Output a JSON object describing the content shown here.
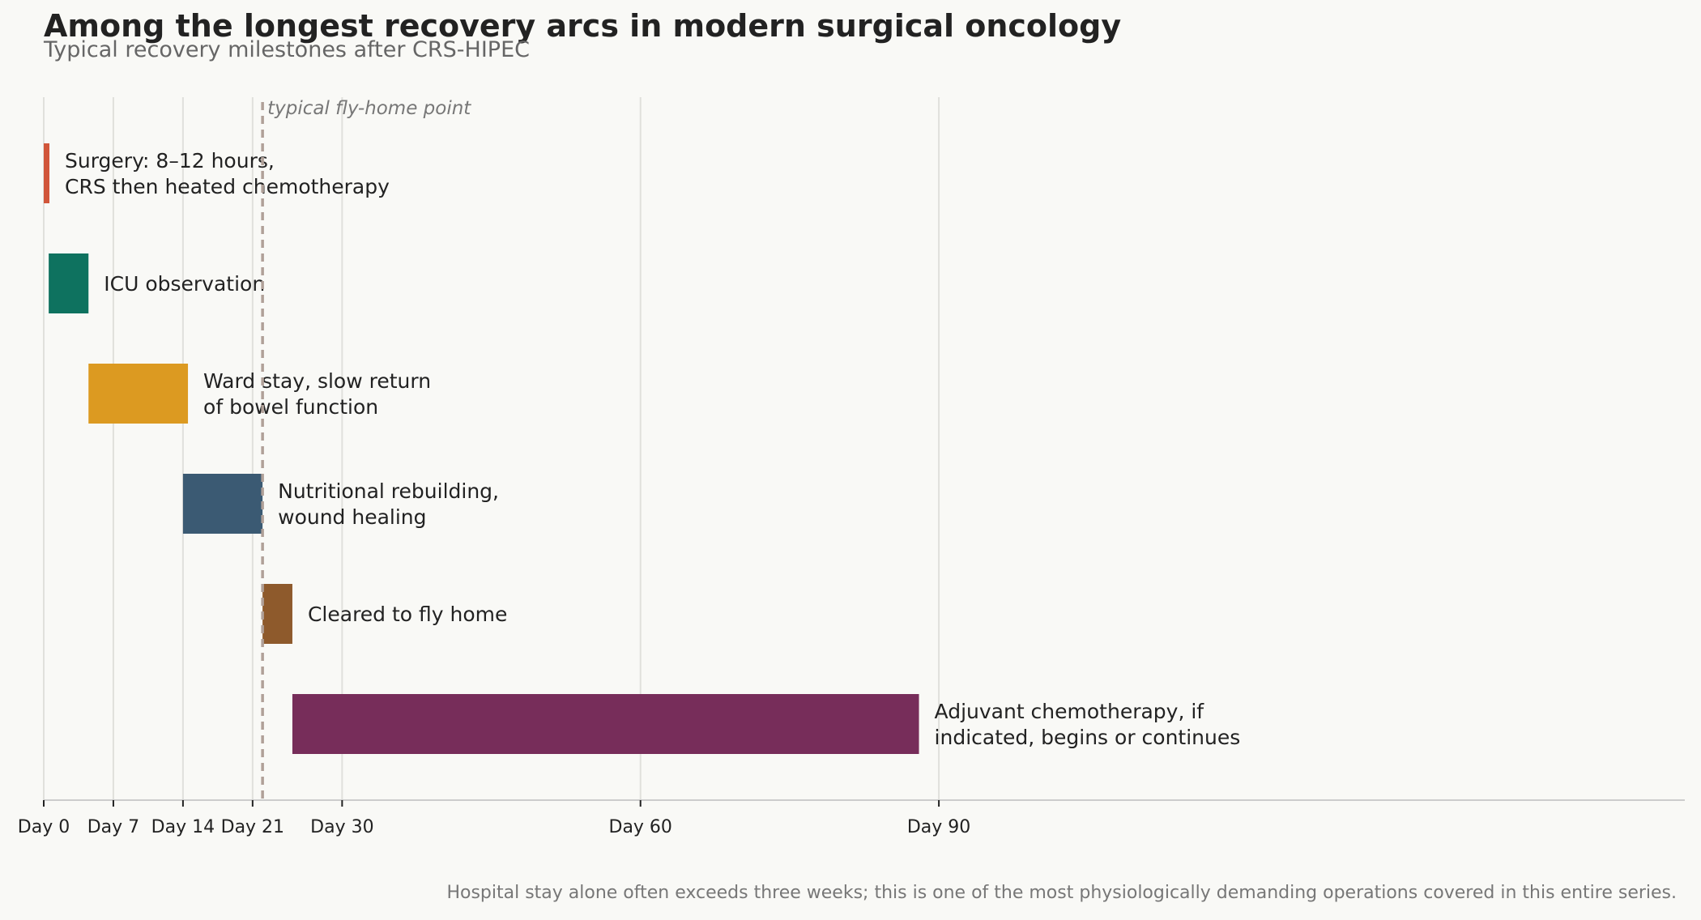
{
  "chart_data": {
    "type": "bar",
    "orientation": "horizontal",
    "title": "Among the longest recovery arcs in modern surgical oncology",
    "subtitle": "Typical recovery milestones after CRS-HIPEC",
    "footnote": "Hospital stay alone often exceeds three weeks; this is one of the most physiologically demanding operations covered in this entire series.",
    "x_ticks": [
      {
        "value": 0,
        "label": "Day 0"
      },
      {
        "value": 7,
        "label": "Day 7"
      },
      {
        "value": 14,
        "label": "Day 14"
      },
      {
        "value": 21,
        "label": "Day 21"
      },
      {
        "value": 30,
        "label": "Day 30"
      },
      {
        "value": 60,
        "label": "Day 60"
      },
      {
        "value": 90,
        "label": "Day 90"
      }
    ],
    "xlim": [
      0,
      165
    ],
    "grid": true,
    "marker": {
      "value": 22,
      "label": "typical fly-home point"
    },
    "bars": [
      {
        "start": 0,
        "end": 0.5,
        "label": [
          "Surgery: 8–12 hours,",
          "CRS then heated chemotherapy"
        ],
        "color": "#d1563a"
      },
      {
        "start": 0.5,
        "end": 4.5,
        "label": [
          "ICU observation"
        ],
        "color": "#0e725f"
      },
      {
        "start": 4.5,
        "end": 14.5,
        "label": [
          "Ward stay, slow return",
          "of bowel function"
        ],
        "color": "#dc9a21"
      },
      {
        "start": 14,
        "end": 22,
        "label": [
          "Nutritional rebuilding,",
          "wound healing"
        ],
        "color": "#3b5a73"
      },
      {
        "start": 22,
        "end": 25,
        "label": [
          "Cleared to fly home"
        ],
        "color": "#8e5a2c"
      },
      {
        "start": 25,
        "end": 88,
        "label": [
          "Adjuvant chemotherapy, if",
          "indicated, begins or continues"
        ],
        "color": "#772d5a"
      }
    ]
  }
}
